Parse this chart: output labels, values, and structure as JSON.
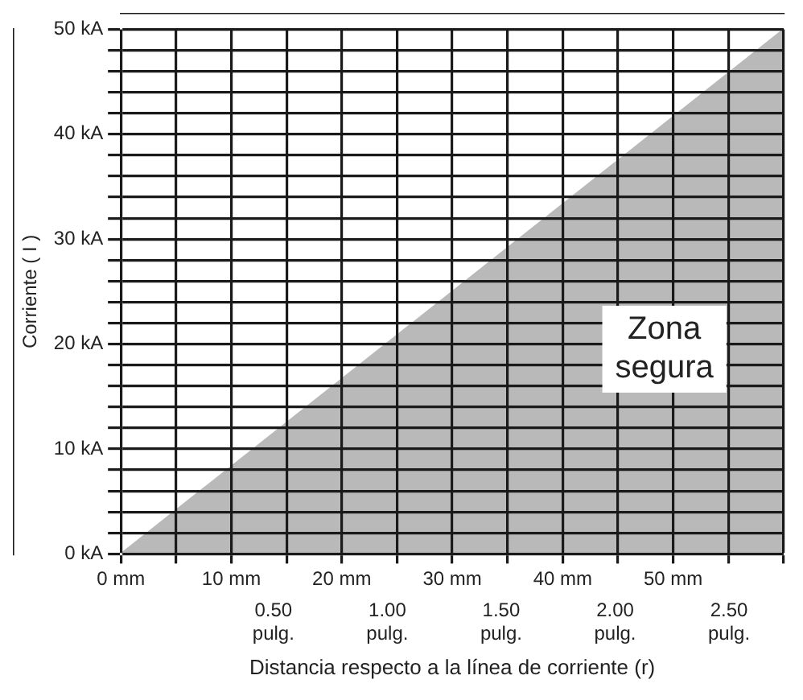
{
  "chart_data": {
    "type": "area",
    "xlabel": "Distancia respecto a la línea de corriente (r)",
    "ylabel": "Corriente ( I )",
    "x": [
      0,
      60
    ],
    "series": [
      {
        "color": "#b9b9b9",
        "values": [
          0,
          50
        ]
      }
    ],
    "xlim": [
      0,
      60
    ],
    "xticks": [
      {
        "value": 0,
        "label": "0 mm"
      },
      {
        "value": 5,
        "label": null
      },
      {
        "value": 10,
        "label": "10 mm"
      },
      {
        "value": 15,
        "label": null
      },
      {
        "value": 20,
        "label": "20 mm"
      },
      {
        "value": 25,
        "label": null
      },
      {
        "value": 30,
        "label": "30 mm"
      },
      {
        "value": 35,
        "label": null
      },
      {
        "value": 40,
        "label": "40 mm"
      },
      {
        "value": 45,
        "label": null
      },
      {
        "value": 50,
        "label": "50 mm"
      },
      {
        "value": 55,
        "label": null
      },
      {
        "value": 60,
        "label": null
      }
    ],
    "x2lim": [
      -0.17,
      2.74
    ],
    "x2ticks": [
      {
        "value": 0.5,
        "label": "0.50 pulg."
      },
      {
        "value": 1,
        "label": "1.00 pulg."
      },
      {
        "value": 1.5,
        "label": "1.50 pulg."
      },
      {
        "value": 2,
        "label": "2.00 pulg."
      },
      {
        "value": 2.5,
        "label": "2.50 pulg."
      }
    ],
    "ylim": [
      0,
      50
    ],
    "yticks": [
      {
        "value": 0,
        "label": "0 kA"
      },
      {
        "value": 2,
        "label": null
      },
      {
        "value": 4,
        "label": null
      },
      {
        "value": 6,
        "label": null
      },
      {
        "value": 8,
        "label": null
      },
      {
        "value": 10,
        "label": "10 kA"
      },
      {
        "value": 12,
        "label": null
      },
      {
        "value": 14,
        "label": null
      },
      {
        "value": 16,
        "label": null
      },
      {
        "value": 18,
        "label": null
      },
      {
        "value": 20,
        "label": "20 kA"
      },
      {
        "value": 22,
        "label": null
      },
      {
        "value": 24,
        "label": null
      },
      {
        "value": 26,
        "label": null
      },
      {
        "value": 28,
        "label": null
      },
      {
        "value": 30,
        "label": "30 kA"
      },
      {
        "value": 32,
        "label": null
      },
      {
        "value": 34,
        "label": null
      },
      {
        "value": 36,
        "label": null
      },
      {
        "value": 38,
        "label": null
      },
      {
        "value": 40,
        "label": "40 kA"
      },
      {
        "value": 42,
        "label": null
      },
      {
        "value": 44,
        "label": null
      },
      {
        "value": 46,
        "label": null
      },
      {
        "value": 48,
        "label": null
      },
      {
        "value": 50,
        "label": "50 kA"
      }
    ],
    "annotations": [
      "Zona segura"
    ],
    "grid": true,
    "legend": false
  }
}
